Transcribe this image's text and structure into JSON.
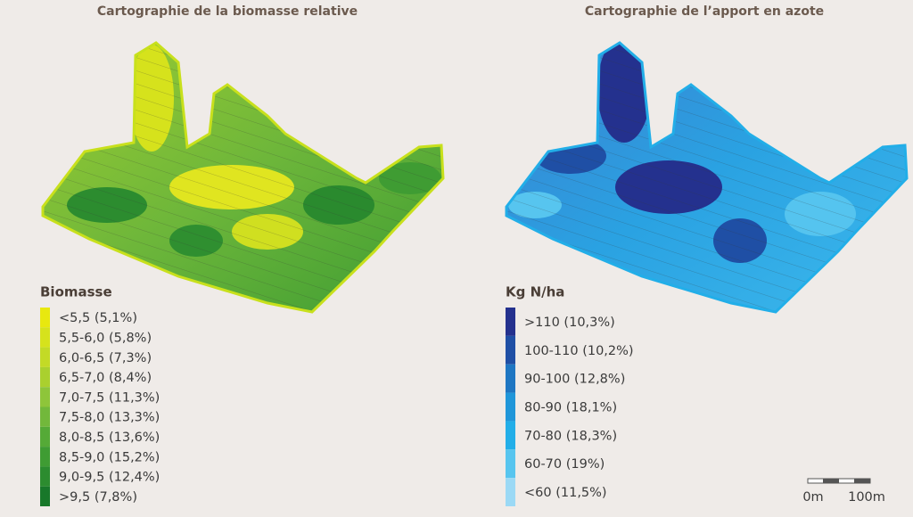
{
  "maps": [
    {
      "title": "Cartographie de la biomasse relative",
      "legend": {
        "title": "Biomasse",
        "items": [
          {
            "label": "<5,5 (5,1%)",
            "color": "#e8e80f"
          },
          {
            "label": "5,5-6,0 (5,8%)",
            "color": "#d6e21c"
          },
          {
            "label": "6,0-6,5 (7,3%)",
            "color": "#c3da26"
          },
          {
            "label": "6,5-7,0 (8,4%)",
            "color": "#aad02e"
          },
          {
            "label": "7,0-7,5 (11,3%)",
            "color": "#8ec53a"
          },
          {
            "label": "7,5-8,0 (13,3%)",
            "color": "#72b83b"
          },
          {
            "label": "8,0-8,5 (13,6%)",
            "color": "#55aa37"
          },
          {
            "label": "8,5-9,0 (15,2%)",
            "color": "#3f9c33"
          },
          {
            "label": "9,0-9,5 (12,4%)",
            "color": "#2c8c2f"
          },
          {
            "label": ">9,5 (7,8%)",
            "color": "#18782a"
          }
        ]
      }
    },
    {
      "title": "Cartographie de l’apport en azote",
      "legend": {
        "title": "Kg N/ha",
        "items": [
          {
            "label": ">110 (10,3%)",
            "color": "#24318e"
          },
          {
            "label": "100-110 (10,2%)",
            "color": "#1f4fa5"
          },
          {
            "label": "90-100 (12,8%)",
            "color": "#1e76c2"
          },
          {
            "label": "80-90 (18,1%)",
            "color": "#1f96d9"
          },
          {
            "label": "70-80 (18,3%)",
            "color": "#22aee8"
          },
          {
            "label": "60-70 (19%)",
            "color": "#57c5ef"
          },
          {
            "label": "<60 (11,5%)",
            "color": "#9bd9f5"
          }
        ]
      }
    }
  ],
  "scale_bar": {
    "labels": [
      "0m",
      "100m"
    ]
  }
}
